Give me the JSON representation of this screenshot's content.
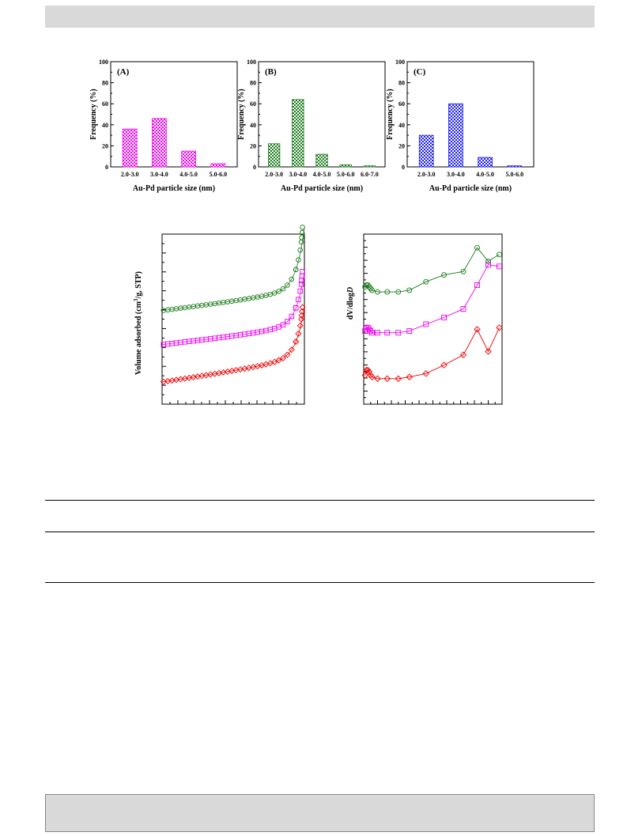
{
  "page": {
    "header_color": "#d9d9d9",
    "footer_color": "#d9d9d9"
  },
  "histograms": [
    {
      "panel": "(A)",
      "color": "#ee00ee",
      "pattern_bg": "#ffb0ff",
      "ylabel": "Frequency (%)",
      "xlabel": "Au-Pd particle size (nm)",
      "yticks": [
        "0",
        "20",
        "40",
        "60",
        "80",
        "100"
      ],
      "chart_data": {
        "type": "bar",
        "categories": [
          "2.0-3.0",
          "3.0-4.0",
          "4.0-5.0",
          "5.0-6.0"
        ],
        "values": [
          36,
          46,
          15,
          3
        ],
        "ylim": [
          0,
          100
        ]
      }
    },
    {
      "panel": "(B)",
      "color": "#1a7a1a",
      "pattern_bg": "#a8dca8",
      "ylabel": "Frequency (%)",
      "xlabel": "Au-Pd particle size (nm)",
      "yticks": [
        "0",
        "20",
        "40",
        "60",
        "80",
        "100"
      ],
      "chart_data": {
        "type": "bar",
        "categories": [
          "2.0-3.0",
          "3.0-4.0",
          "4.0-5.0",
          "5.0-6.0",
          "6.0-7.0"
        ],
        "values": [
          22,
          64,
          12,
          2,
          1
        ],
        "ylim": [
          0,
          100
        ]
      }
    },
    {
      "panel": "(C)",
      "color": "#1a1aee",
      "pattern_bg": "#b0b0ff",
      "ylabel": "Frequency (%)",
      "xlabel": "Au-Pd particle size (nm)",
      "yticks": [
        "0",
        "20",
        "40",
        "60",
        "80",
        "100"
      ],
      "chart_data": {
        "type": "bar",
        "categories": [
          "2.0-3.0",
          "3.0-4.0",
          "4.0-5.0",
          "5.0-6.0"
        ],
        "values": [
          30,
          60,
          9,
          1
        ],
        "ylim": [
          0,
          100
        ]
      }
    }
  ],
  "isotherm": {
    "ylabel_main": "Volume adsorbed (cm",
    "ylabel_sup": "3",
    "ylabel_rest": "/g, STP)",
    "chart_data": {
      "type": "scatter",
      "xlim": [
        0,
        1
      ],
      "ylim": [
        0,
        1
      ],
      "series": [
        {
          "color": "#1a7a1a",
          "marker": "circle",
          "base": 0.55,
          "slope": 0.11,
          "tail": 0.35
        },
        {
          "color": "#ee00ee",
          "marker": "square",
          "base": 0.35,
          "slope": 0.1,
          "tail": 0.3
        },
        {
          "color": "#ee0000",
          "marker": "diamond",
          "base": 0.13,
          "slope": 0.13,
          "tail": 0.28
        }
      ]
    }
  },
  "pore": {
    "ylabel": "dV/dlog",
    "ylabel_italic": "D",
    "chart_data": {
      "type": "line",
      "series": [
        {
          "color": "#1a7a1a",
          "marker": "circle",
          "x": [
            0.01,
            0.02,
            0.03,
            0.04,
            0.05,
            0.06,
            0.1,
            0.17,
            0.25,
            0.33,
            0.45,
            0.58,
            0.72,
            0.82,
            0.9,
            0.98
          ],
          "y": [
            0.69,
            0.7,
            0.7,
            0.69,
            0.68,
            0.67,
            0.66,
            0.66,
            0.66,
            0.67,
            0.72,
            0.76,
            0.78,
            0.92,
            0.84,
            0.88
          ]
        },
        {
          "color": "#ee00ee",
          "marker": "square",
          "x": [
            0.01,
            0.02,
            0.03,
            0.04,
            0.05,
            0.06,
            0.1,
            0.17,
            0.25,
            0.33,
            0.45,
            0.58,
            0.72,
            0.82,
            0.9,
            0.98
          ],
          "y": [
            0.43,
            0.45,
            0.45,
            0.44,
            0.43,
            0.42,
            0.42,
            0.42,
            0.42,
            0.43,
            0.47,
            0.51,
            0.56,
            0.7,
            0.82,
            0.81
          ]
        },
        {
          "color": "#ee0000",
          "marker": "diamond",
          "x": [
            0.01,
            0.02,
            0.03,
            0.04,
            0.05,
            0.06,
            0.1,
            0.17,
            0.25,
            0.33,
            0.45,
            0.58,
            0.72,
            0.82,
            0.9,
            0.98
          ],
          "y": [
            0.17,
            0.2,
            0.2,
            0.19,
            0.17,
            0.16,
            0.15,
            0.15,
            0.15,
            0.16,
            0.18,
            0.23,
            0.29,
            0.44,
            0.31,
            0.45
          ]
        }
      ]
    }
  }
}
